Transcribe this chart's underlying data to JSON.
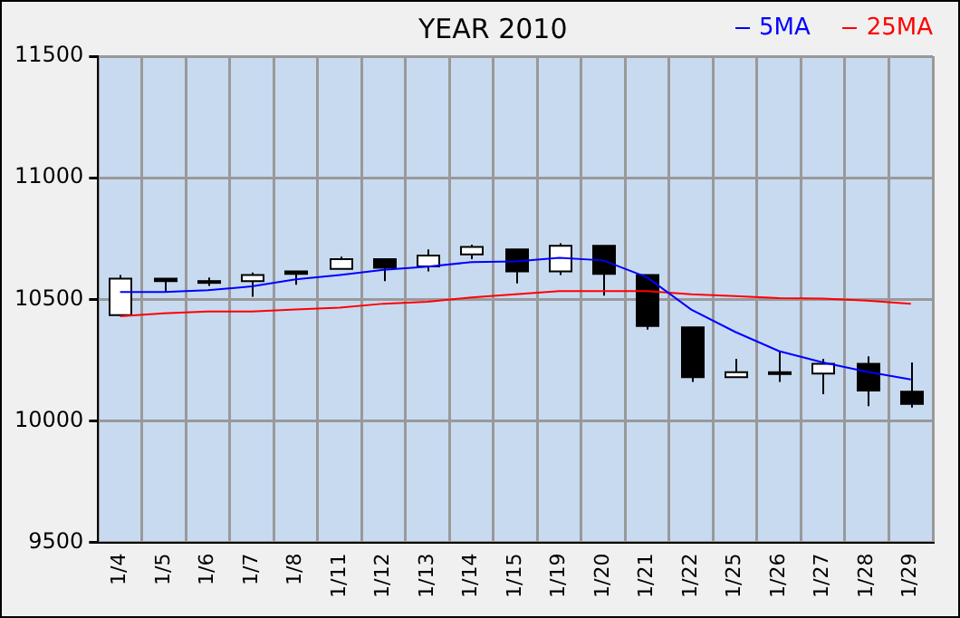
{
  "chart_data": {
    "type": "candlestick",
    "title": "YEAR 2010",
    "categories": [
      "1/4",
      "1/5",
      "1/6",
      "1/7",
      "1/8",
      "1/11",
      "1/12",
      "1/13",
      "1/14",
      "1/15",
      "1/19",
      "1/20",
      "1/21",
      "1/22",
      "1/25",
      "1/26",
      "1/27",
      "1/28",
      "1/29"
    ],
    "ohlc": [
      [
        10435,
        10600,
        10430,
        10585
      ],
      [
        10585,
        10585,
        10530,
        10575
      ],
      [
        10575,
        10590,
        10555,
        10575
      ],
      [
        10575,
        10610,
        10510,
        10600
      ],
      [
        10615,
        10615,
        10560,
        10605
      ],
      [
        10625,
        10675,
        10625,
        10665
      ],
      [
        10665,
        10665,
        10575,
        10630
      ],
      [
        10635,
        10705,
        10615,
        10680
      ],
      [
        10685,
        10725,
        10665,
        10715
      ],
      [
        10705,
        10705,
        10565,
        10615
      ],
      [
        10615,
        10730,
        10600,
        10720
      ],
      [
        10720,
        10720,
        10515,
        10605
      ],
      [
        10600,
        10600,
        10375,
        10390
      ],
      [
        10385,
        10385,
        10160,
        10180
      ],
      [
        10180,
        10255,
        10180,
        10200
      ],
      [
        10200,
        10285,
        10160,
        10200
      ],
      [
        10195,
        10255,
        10110,
        10235
      ],
      [
        10235,
        10265,
        10060,
        10125
      ],
      [
        10120,
        10240,
        10055,
        10070
      ]
    ],
    "series": [
      {
        "name": "5MA",
        "type": "line",
        "color": "#0000ff",
        "values": [
          10530,
          10530,
          10537,
          10553,
          10582,
          10600,
          10621,
          10634,
          10653,
          10656,
          10671,
          10660,
          10590,
          10458,
          10366,
          10287,
          10240,
          10202,
          10170
        ]
      },
      {
        "name": "25MA",
        "type": "line",
        "color": "#ff0000",
        "values": [
          10430,
          10442,
          10450,
          10450,
          10458,
          10466,
          10482,
          10490,
          10508,
          10521,
          10534,
          10534,
          10534,
          10521,
          10513,
          10505,
          10503,
          10495,
          10482
        ]
      }
    ],
    "ylim": [
      9500,
      11500
    ],
    "yticks": [
      9500,
      10000,
      10500,
      11000,
      11500
    ],
    "grid": true,
    "legend": "top right"
  }
}
